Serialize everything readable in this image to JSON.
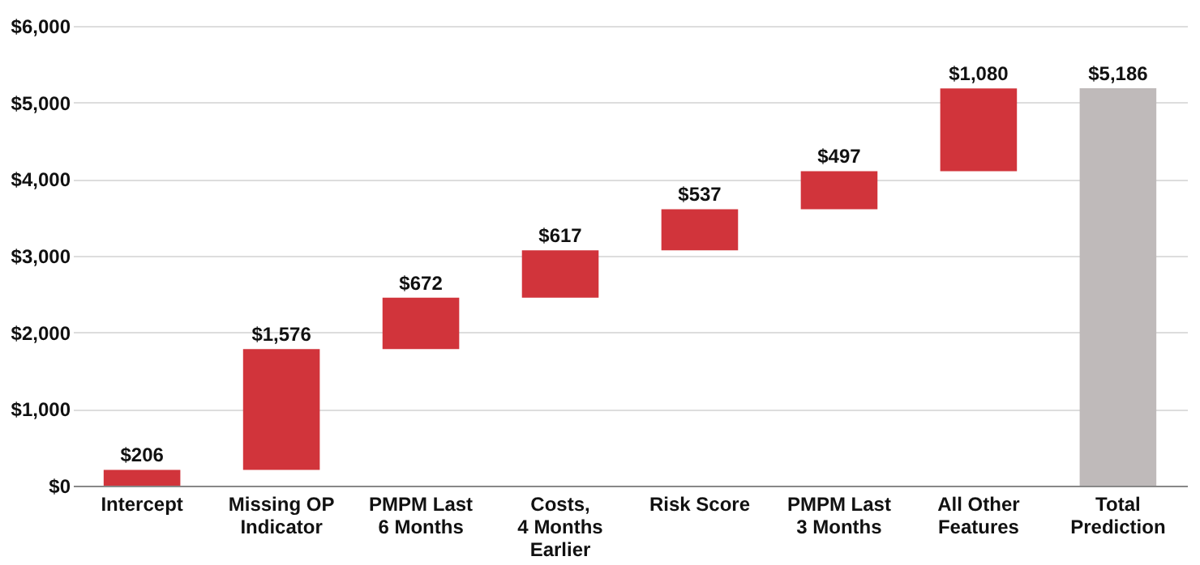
{
  "chart_data": {
    "type": "bar",
    "categories": [
      "Intercept",
      "Missing OP\nIndicator",
      "PMPM Last\n6 Months",
      "Costs,\n4 Months\nEarlier",
      "Risk Score",
      "PMPM Last\n3 Months",
      "All Other\nFeatures",
      "Total\nPrediction"
    ],
    "values": [
      206,
      1576,
      672,
      617,
      537,
      497,
      1080,
      5186
    ],
    "base": [
      0,
      206,
      1782,
      2454,
      3071,
      3608,
      4105,
      0
    ],
    "colors": [
      "#d1343b",
      "#d1343b",
      "#d1343b",
      "#d1343b",
      "#d1343b",
      "#d1343b",
      "#d1343b",
      "#bfbaba"
    ],
    "value_labels": [
      "$206",
      "$1,576",
      "$672",
      "$617",
      "$537",
      "$497",
      "$1,080",
      "$5,186"
    ],
    "ylim": [
      0,
      6000
    ],
    "yticks": [
      {
        "value": 0,
        "label": "$0"
      },
      {
        "value": 1000,
        "label": "$1,000"
      },
      {
        "value": 2000,
        "label": "$2,000"
      },
      {
        "value": 3000,
        "label": "$3,000"
      },
      {
        "value": 4000,
        "label": "$4,000"
      },
      {
        "value": 5000,
        "label": "$5,000"
      },
      {
        "value": 6000,
        "label": "$6,000"
      }
    ],
    "grid": "y"
  }
}
